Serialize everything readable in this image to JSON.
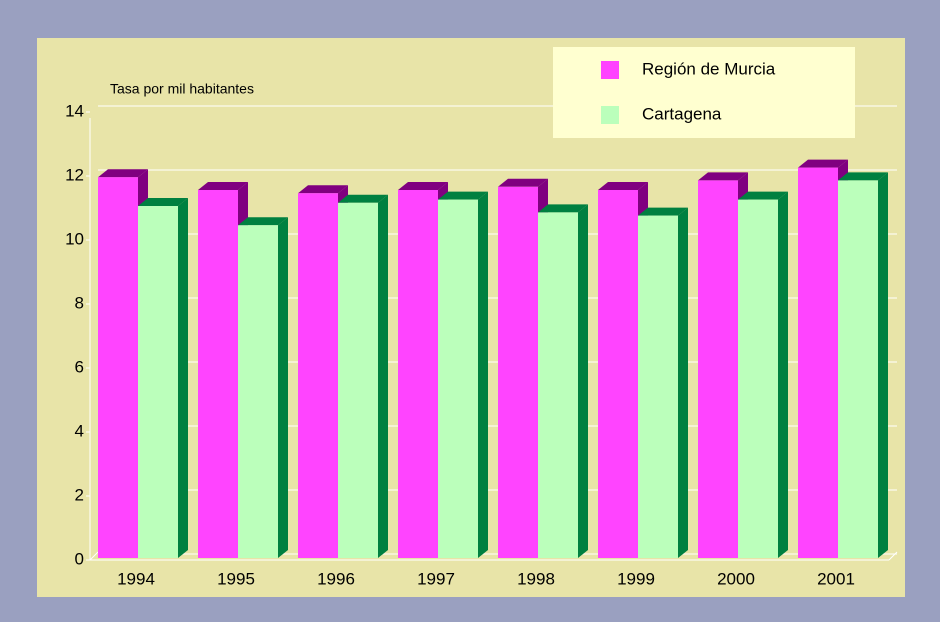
{
  "chart_data": {
    "type": "bar3d",
    "y_axis_label": "Tasa por mil habitantes",
    "categories": [
      "1994",
      "1995",
      "1996",
      "1997",
      "1998",
      "1999",
      "2000",
      "2001"
    ],
    "series": [
      {
        "name": "Región de Murcia",
        "color": "#ff44ff",
        "side_color": "#800080",
        "values": [
          11.9,
          11.5,
          11.4,
          11.5,
          11.6,
          11.5,
          11.8,
          12.2
        ]
      },
      {
        "name": "Cartagena",
        "color": "#bbffbb",
        "side_color": "#008040",
        "values": [
          11.0,
          10.4,
          11.1,
          11.2,
          10.8,
          10.7,
          11.2,
          11.8
        ]
      }
    ],
    "ylim": [
      0,
      14
    ],
    "yticks": [
      0,
      2,
      4,
      6,
      8,
      10,
      12,
      14
    ],
    "grid": true,
    "legend": "upper right"
  }
}
